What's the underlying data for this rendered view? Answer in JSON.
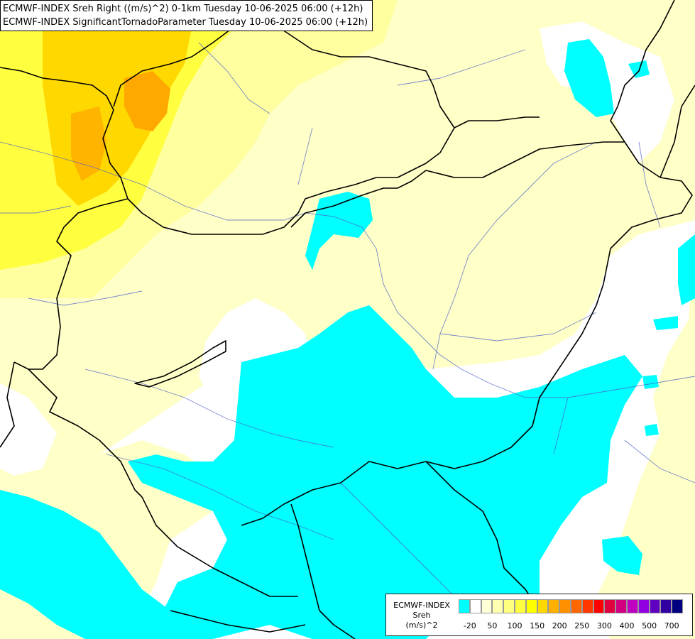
{
  "title": {
    "line1": "ECMWF-INDEX Sreh Right ((m/s)^2) 0-1km Tuesday 10-06-2025 06:00 (+12h)",
    "line2": "ECMWF-INDEX SignificantTornadoParameter Tuesday 10-06-2025 06:00 (+12h)"
  },
  "legend": {
    "label_line1": "ECMWF-INDEX",
    "label_line2": "Sreh",
    "label_line3": "(m/s)^2",
    "ticks": [
      "-20",
      "50",
      "100",
      "150",
      "200",
      "250",
      "300",
      "400",
      "500",
      "700"
    ],
    "colors": [
      "#00ffff",
      "#ffffff",
      "#ffffd8",
      "#ffffb0",
      "#ffff80",
      "#ffff40",
      "#ffff00",
      "#ffd800",
      "#ffb000",
      "#ff9000",
      "#ff6800",
      "#ff3800",
      "#ff0000",
      "#e00040",
      "#d00080",
      "#c000c0",
      "#9000e0",
      "#6000c0",
      "#3000a0",
      "#000080"
    ]
  },
  "fill_colors": {
    "cyan": "#00ffff",
    "pale_yellow": "#ffffc8",
    "light_yellow": "#ffffa0",
    "yellow": "#ffff40",
    "gold": "#ffd800",
    "orange": "#ffa800"
  }
}
